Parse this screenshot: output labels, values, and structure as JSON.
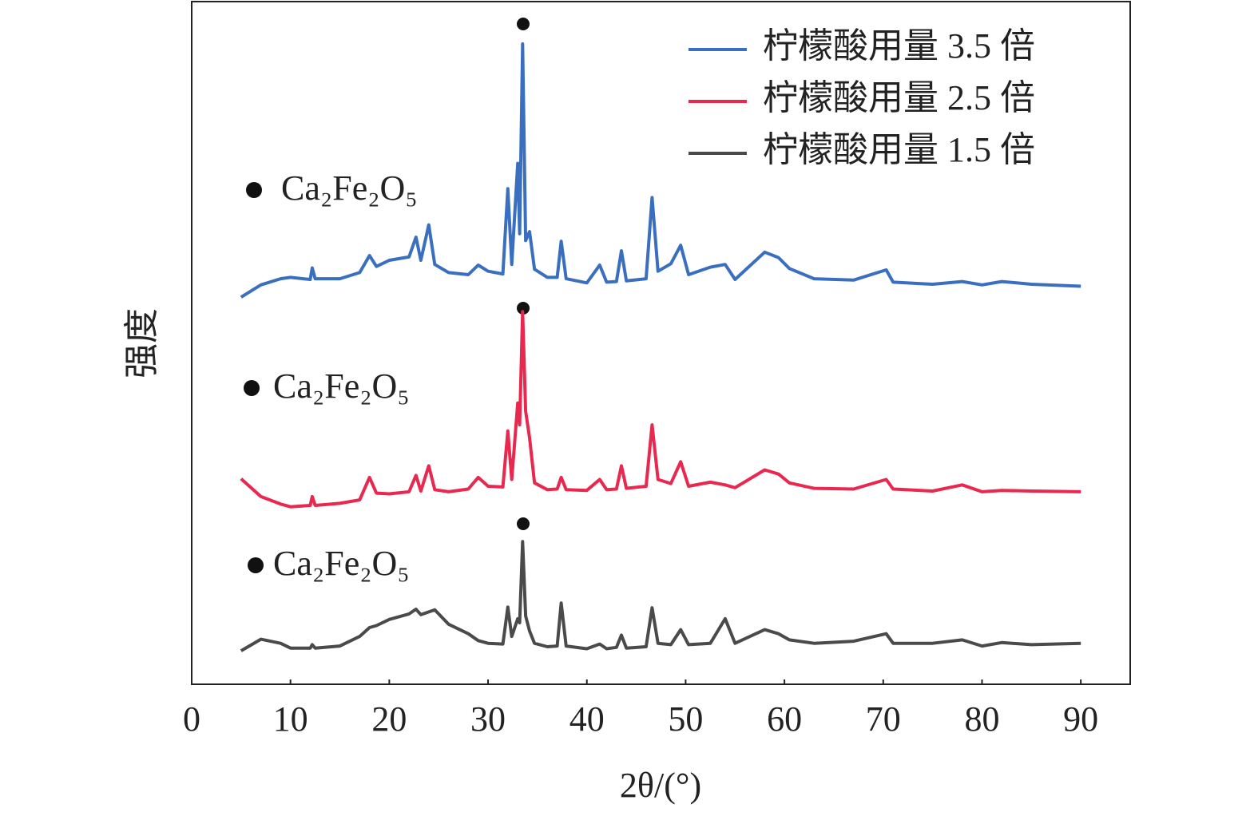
{
  "chart_data": {
    "type": "line",
    "x_label": "2θ/(°)",
    "y_label": "强度",
    "xlim": [
      0,
      95
    ],
    "xticks": [
      0,
      10,
      20,
      30,
      40,
      50,
      60,
      70,
      80,
      90
    ],
    "ylim": [
      0,
      100
    ],
    "legend": "upper right",
    "annotations": [
      "Ca₂Fe₂O₅",
      "Ca₂Fe₂O₅",
      "Ca₂Fe₂O₅"
    ],
    "x": [
      5,
      7,
      9,
      10,
      12,
      12.2,
      12.5,
      15,
      17,
      18,
      18.7,
      20,
      22,
      22.7,
      23.2,
      24,
      24.6,
      26,
      28,
      29,
      30,
      31.5,
      32,
      32.4,
      33,
      33.2,
      33.5,
      33.8,
      34.2,
      34.7,
      36,
      37,
      37.4,
      37.9,
      40,
      41.3,
      42,
      43,
      43.5,
      44,
      46,
      46.6,
      47.2,
      48.5,
      49.5,
      50.3,
      52.5,
      54,
      55,
      58,
      59.4,
      60.5,
      63,
      67,
      70.3,
      71,
      75,
      78,
      80,
      82,
      85,
      90
    ],
    "series": [
      {
        "name": "柠檬酸用量 3.5 倍",
        "color": "#3a6fc0",
        "values": [
          56.7,
          58.5,
          59.4,
          59.6,
          59.3,
          61.0,
          59.4,
          59.4,
          60.3,
          62.8,
          61.2,
          62.1,
          62.6,
          65.5,
          62.1,
          67.3,
          61.5,
          60.3,
          60.0,
          61.4,
          60.5,
          60.1,
          72.6,
          61.5,
          76.3,
          66.0,
          93.8,
          65.0,
          66.3,
          60.8,
          59.6,
          59.6,
          64.9,
          59.4,
          58.8,
          61.4,
          58.9,
          59.0,
          63.5,
          59.1,
          59.4,
          71.3,
          60.5,
          61.6,
          64.3,
          60.0,
          61.1,
          61.5,
          59.3,
          63.3,
          62.5,
          60.9,
          59.4,
          59.2,
          60.7,
          58.9,
          58.6,
          59.0,
          58.5,
          59.0,
          58.6,
          58.3
        ]
      },
      {
        "name": "柠檬酸用量 2.5 倍",
        "color": "#e8284e",
        "values": [
          30.1,
          27.5,
          26.4,
          26.0,
          26.2,
          27.5,
          26.2,
          26.5,
          27.0,
          30.3,
          28.0,
          27.9,
          28.2,
          30.6,
          28.3,
          32.0,
          28.5,
          28.2,
          28.6,
          30.3,
          29.0,
          28.9,
          37.1,
          30.0,
          41.2,
          38.0,
          54.6,
          40.0,
          36.1,
          29.5,
          28.5,
          28.6,
          30.3,
          28.5,
          28.4,
          30.0,
          28.5,
          28.6,
          32.0,
          28.7,
          29.0,
          38.0,
          30.0,
          29.4,
          32.6,
          29.0,
          29.6,
          29.2,
          28.8,
          31.4,
          30.8,
          29.5,
          28.7,
          28.6,
          30.0,
          28.6,
          28.3,
          29.2,
          28.2,
          28.4,
          28.3,
          28.2
        ]
      },
      {
        "name": "柠檬酸用量 1.5 倍",
        "color": "#4a4a4a",
        "values": [
          4.9,
          6.6,
          6.0,
          5.3,
          5.3,
          5.8,
          5.3,
          5.6,
          7.0,
          8.3,
          8.6,
          9.5,
          10.3,
          11.0,
          10.2,
          10.6,
          10.9,
          8.8,
          7.4,
          6.4,
          6.0,
          5.9,
          11.3,
          7.0,
          9.6,
          9.0,
          20.9,
          10.0,
          7.8,
          6.0,
          5.5,
          5.6,
          11.9,
          5.6,
          5.2,
          5.9,
          5.2,
          5.4,
          7.2,
          5.3,
          5.5,
          11.2,
          6.0,
          5.8,
          8.0,
          5.8,
          6.0,
          9.6,
          6.0,
          8.0,
          7.4,
          6.5,
          6.0,
          6.3,
          7.4,
          6.0,
          6.0,
          6.5,
          5.6,
          6.1,
          5.8,
          6.0
        ]
      }
    ]
  }
}
